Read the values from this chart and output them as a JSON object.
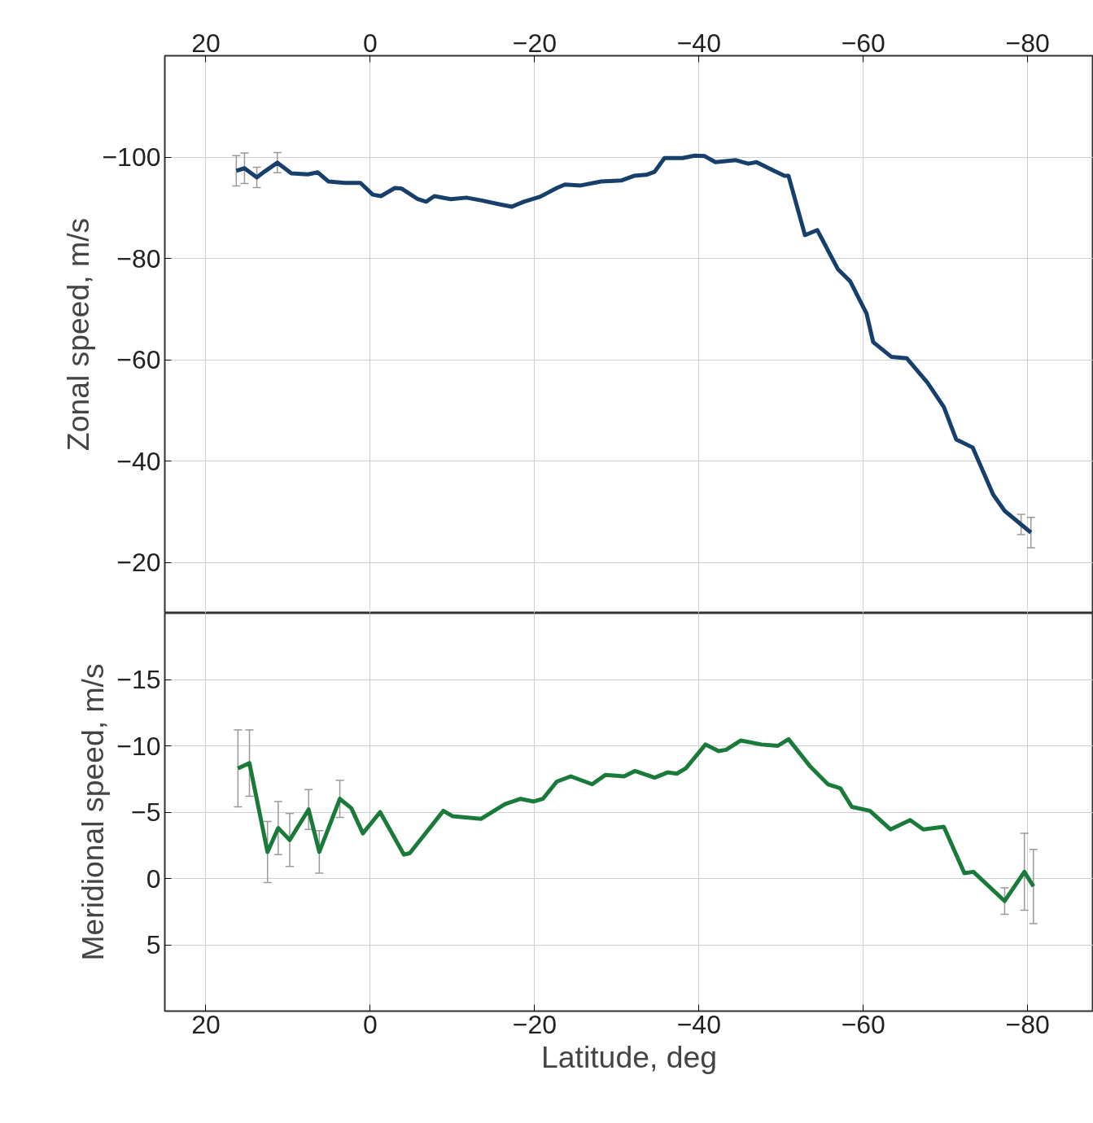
{
  "chart_data": [
    {
      "type": "line",
      "ylabel": "Zonal speed, m/s",
      "xlim": [
        25,
        -88
      ],
      "xticks": [
        20,
        0,
        -20,
        -40,
        -60,
        -80
      ],
      "ylim": [
        -10,
        -120
      ],
      "yticks": [
        -100,
        -80,
        -60,
        -40,
        -20
      ],
      "grid": true,
      "line_style": "solid",
      "series": [
        {
          "color": "#173f6b",
          "x": [
            16.3,
            15.3,
            13.8,
            12.9,
            11.3,
            9.6,
            7.6,
            6.4,
            5.1,
            3.1,
            1.2,
            -0.3,
            -1.3,
            -3,
            -3.8,
            -5.8,
            -6.8,
            -7.8,
            -9.8,
            -11.7,
            -13.7,
            -15.7,
            -17.2,
            -18.7,
            -20.7,
            -22.7,
            -23.7,
            -25.6,
            -28.1,
            -30.6,
            -32.1,
            -33.6,
            -34.6,
            -35.8,
            -38,
            -39.5,
            -40.7,
            -42,
            -44.5,
            -46,
            -47,
            -49,
            -50.4,
            -50.9,
            -52.9,
            -54.4,
            -56.9,
            -58.4,
            -60.4,
            -61.2,
            -63.4,
            -65.3,
            -67.8,
            -69.8,
            -71.3,
            -73.3,
            -75.8,
            -77.2,
            -79.2,
            -80.4
          ],
          "values": [
            -97.3,
            -97.8,
            -96,
            -97.1,
            -98.9,
            -96.8,
            -96.6,
            -97,
            -95.2,
            -94.9,
            -94.9,
            -92.6,
            -92.3,
            -93.9,
            -93.8,
            -91.7,
            -91.2,
            -92.3,
            -91.7,
            -92,
            -91.4,
            -90.7,
            -90.2,
            -91.2,
            -92.2,
            -93.9,
            -94.6,
            -94.4,
            -95.2,
            -95.4,
            -96.3,
            -96.5,
            -97.1,
            -99.8,
            -99.8,
            -100.3,
            -100.2,
            -99,
            -99.4,
            -98.7,
            -99,
            -97.4,
            -96.3,
            -96.3,
            -84.6,
            -85.6,
            -77.9,
            -75.5,
            -69.1,
            -63.5,
            -60.6,
            -60.3,
            -55.5,
            -50.7,
            -44.3,
            -42.7,
            -33.4,
            -30.2,
            -27.5,
            -25.9
          ],
          "errors": [
            3,
            3,
            2,
            null,
            2,
            null,
            null,
            null,
            null,
            null,
            null,
            null,
            null,
            null,
            null,
            null,
            null,
            null,
            null,
            null,
            null,
            null,
            null,
            null,
            null,
            null,
            null,
            null,
            null,
            null,
            null,
            null,
            null,
            null,
            null,
            null,
            null,
            null,
            null,
            null,
            null,
            null,
            null,
            null,
            null,
            null,
            null,
            null,
            null,
            null,
            null,
            null,
            null,
            null,
            null,
            null,
            null,
            null,
            2,
            3
          ]
        }
      ]
    },
    {
      "type": "line",
      "xlabel": "Latitude, deg",
      "ylabel": "Meridional speed, m/s",
      "xlim": [
        25,
        -88
      ],
      "xticks": [
        20,
        0,
        -20,
        -40,
        -60,
        -80
      ],
      "ylim": [
        10,
        -20
      ],
      "yticks": [
        -15,
        -10,
        -5,
        0,
        5
      ],
      "grid": true,
      "line_style": "solid",
      "series": [
        {
          "color": "#1a7a3a",
          "x": [
            16.1,
            14.7,
            12.5,
            11.2,
            9.8,
            7.5,
            6.2,
            3.7,
            2.3,
            0.9,
            -1.2,
            -4.1,
            -4.8,
            -8.9,
            -10,
            -13.5,
            -16.4,
            -18.3,
            -19.9,
            -21,
            -22.7,
            -24.4,
            -27,
            -28.6,
            -30.9,
            -32.2,
            -34.6,
            -36.2,
            -37.3,
            -38.4,
            -40.8,
            -42.4,
            -43.3,
            -45.1,
            -47.6,
            -49.6,
            -50.9,
            -53.6,
            -55.7,
            -57.2,
            -58.6,
            -60.8,
            -63.3,
            -65.7,
            -67.3,
            -69.8,
            -72.3,
            -73.4,
            -77.2,
            -79.6,
            -80.7
          ],
          "values": [
            -8.3,
            -8.7,
            -2,
            -3.8,
            -2.9,
            -5.2,
            -2,
            -6,
            -5.3,
            -3.4,
            -5,
            -1.8,
            -1.9,
            -5.1,
            -4.7,
            -4.5,
            -5.6,
            -6,
            -5.8,
            -6,
            -7.3,
            -7.7,
            -7.1,
            -7.8,
            -7.7,
            -8.1,
            -7.6,
            -8,
            -7.9,
            -8.3,
            -10.1,
            -9.6,
            -9.7,
            -10.4,
            -10.1,
            -10,
            -10.5,
            -8.4,
            -7.1,
            -6.8,
            -5.4,
            -5.1,
            -3.7,
            -4.4,
            -3.7,
            -3.9,
            -0.4,
            -0.5,
            1.7,
            -0.5,
            0.6
          ],
          "errors": [
            2.9,
            2.5,
            2.3,
            2,
            2,
            1.5,
            1.6,
            1.4,
            null,
            null,
            null,
            null,
            null,
            null,
            null,
            null,
            null,
            null,
            null,
            null,
            null,
            null,
            null,
            null,
            null,
            null,
            null,
            null,
            null,
            null,
            null,
            null,
            null,
            null,
            null,
            null,
            null,
            null,
            null,
            null,
            null,
            null,
            null,
            null,
            null,
            null,
            null,
            null,
            1,
            2.9,
            2.8
          ]
        }
      ]
    }
  ]
}
